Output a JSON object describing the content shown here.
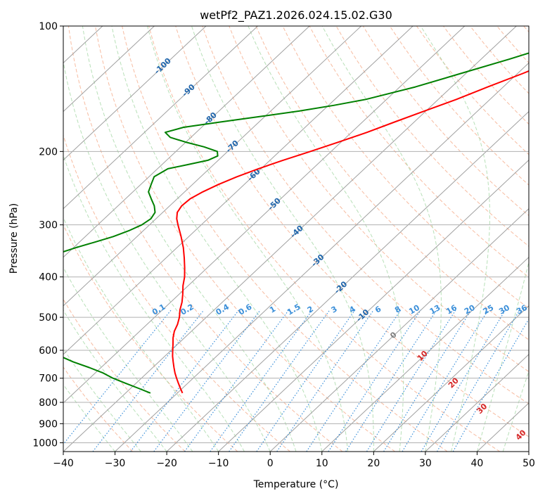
{
  "chart_data": {
    "type": "line",
    "title": "wetPf2_PAZ1.2026.024.15.02.G30",
    "xlabel": "Temperature (°C)",
    "ylabel": "Pressure (hPa)",
    "xlim": [
      -40,
      50
    ],
    "ylim": [
      1050,
      100
    ],
    "y_scale": "log",
    "grid": true,
    "x_ticks": [
      -40,
      -30,
      -20,
      -10,
      0,
      10,
      20,
      30,
      40,
      50
    ],
    "x_tick_labels": [
      "−40",
      "−30",
      "−20",
      "−10",
      "0",
      "10",
      "20",
      "30",
      "40",
      "50"
    ],
    "y_ticks": [
      100,
      200,
      300,
      400,
      500,
      600,
      700,
      800,
      900,
      1000
    ],
    "y_tick_labels": [
      "100",
      "200",
      "300",
      "400",
      "500",
      "600",
      "700",
      "800",
      "900",
      "1000"
    ],
    "colors": {
      "temperature": "#ff0000",
      "dewpoint": "#008000",
      "isotherm": "#a0a0a0",
      "dry_adiabat": "#f4a582",
      "moist_adiabat": "#a6d8a6",
      "mixing_ratio": "#3b8fd9",
      "isotherm_label": "#2166ac",
      "mixing_ratio_label": "#3b8fd9",
      "theta_e_label": "#d62728"
    },
    "isotherm_labels": [
      {
        "value": "-100",
        "temperature": -100,
        "pressure": 125
      },
      {
        "value": "-90",
        "temperature": -90,
        "pressure": 143
      },
      {
        "value": "-80",
        "temperature": -80,
        "pressure": 167
      },
      {
        "value": "-70",
        "temperature": -70,
        "pressure": 195
      },
      {
        "value": "-60",
        "temperature": -60,
        "pressure": 228
      },
      {
        "value": "-50",
        "temperature": -50,
        "pressure": 268
      },
      {
        "value": "-40",
        "temperature": -40,
        "pressure": 312
      },
      {
        "value": "-30",
        "temperature": -30,
        "pressure": 366
      },
      {
        "value": "-20",
        "temperature": -20,
        "pressure": 425
      },
      {
        "value": "-10",
        "temperature": -10,
        "pressure": 496
      },
      {
        "value": "0",
        "temperature": 0,
        "pressure": 553
      }
    ],
    "mixing_ratio_labels": {
      "pressure": 480,
      "values": [
        "0.1",
        "0.2",
        "0.4",
        "0.6",
        "1",
        "1.5",
        "2",
        "3",
        "4",
        "6",
        "8",
        "10",
        "13",
        "16",
        "20",
        "25",
        "30",
        "36"
      ],
      "temperatures": [
        -21.5,
        -16,
        -9.2,
        -4.8,
        0.5,
        4.6,
        7.8,
        12.4,
        15.9,
        20.9,
        24.7,
        27.9,
        31.9,
        35.1,
        38.6,
        42.2,
        45.3,
        48.7
      ]
    },
    "theta_e_labels": [
      {
        "value": "10",
        "temperature": 29.5,
        "pressure": 620
      },
      {
        "value": "20",
        "temperature": 35.5,
        "pressure": 720
      },
      {
        "value": "30",
        "temperature": 41,
        "pressure": 830
      },
      {
        "value": "40",
        "temperature": 48.5,
        "pressure": 960
      }
    ],
    "series": [
      {
        "key": "temperature",
        "pressure": [
          100,
          110,
          120,
          130,
          140,
          150,
          160,
          170,
          180,
          190,
          200,
          210,
          220,
          230,
          240,
          250,
          260,
          270,
          280,
          290,
          300,
          320,
          340,
          360,
          380,
          400,
          420,
          440,
          460,
          480,
          500,
          520,
          540,
          560,
          580,
          600,
          620,
          640,
          660,
          680,
          700,
          720,
          740,
          760
        ],
        "temperature": [
          -19.6,
          -22,
          -25.2,
          -29,
          -33,
          -36.5,
          -40.3,
          -43.8,
          -47,
          -50.5,
          -54,
          -57.5,
          -60.5,
          -63,
          -65,
          -66.5,
          -67.5,
          -67.7,
          -67.2,
          -66,
          -64.5,
          -61.5,
          -58.8,
          -56.5,
          -54.4,
          -52.5,
          -51,
          -49.3,
          -47.8,
          -46.6,
          -45.2,
          -44.1,
          -43.3,
          -42.2,
          -40.9,
          -39.7,
          -38.5,
          -37.2,
          -35.9,
          -34.6,
          -33.2,
          -31.8,
          -30.4,
          -29
        ]
      },
      {
        "key": "dewpoint",
        "pressure": [
          100,
          110,
          120,
          130,
          140,
          150,
          155,
          160,
          165,
          170,
          175,
          180,
          185,
          190,
          195,
          200,
          205,
          210,
          215,
          220,
          230,
          240,
          250,
          260,
          270,
          280,
          290,
          300,
          310,
          320,
          330,
          340,
          350,
          360,
          370,
          380,
          390,
          400,
          410,
          420,
          430,
          440,
          450,
          460,
          470,
          480,
          490,
          500,
          520,
          540,
          560,
          580,
          600,
          620,
          640,
          660,
          680,
          700,
          720,
          740,
          760
        ],
        "temperature": [
          -22.8,
          -28,
          -34.5,
          -41,
          -47,
          -54,
          -59,
          -64.5,
          -71,
          -77.5,
          -83.5,
          -86,
          -84,
          -80,
          -75.5,
          -72,
          -71,
          -72,
          -75,
          -78,
          -79,
          -78,
          -77,
          -75,
          -73,
          -71.5,
          -71,
          -71.5,
          -72.8,
          -74.6,
          -77,
          -79.5,
          -81.5,
          -83.4,
          -84.8,
          -86.2,
          -87,
          -86.3,
          -84.9,
          -83.2,
          -81.9,
          -84.2,
          -88.3,
          -90.5,
          -91.4,
          -90,
          -87.6,
          -84.5,
          -80.2,
          -76.3,
          -72.1,
          -67.7,
          -63.2,
          -60.2,
          -56.5,
          -52.3,
          -48.5,
          -45.5,
          -42,
          -38.5,
          -35.2
        ]
      }
    ]
  }
}
